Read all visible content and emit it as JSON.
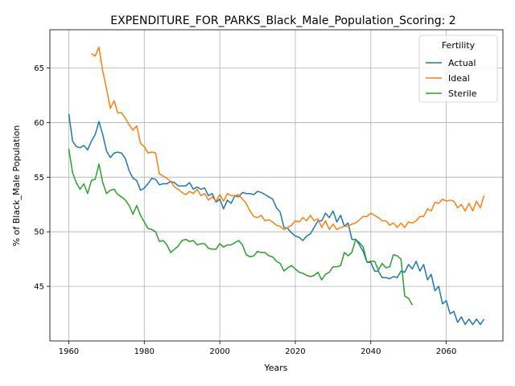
{
  "chart_data": {
    "type": "line",
    "title": "EXPENDITURE_FOR_PARKS_Black_Male_Population_Scoring: 2",
    "xlabel": "Years",
    "ylabel": "% of Black_Male Population",
    "xlim": [
      1955,
      2075
    ],
    "ylim": [
      40,
      68.5
    ],
    "xticks": [
      1960,
      1980,
      2000,
      2020,
      2040,
      2060
    ],
    "yticks": [
      45,
      50,
      55,
      60,
      65
    ],
    "grid": true,
    "legend": {
      "title": "Fertility",
      "placement": "top-right"
    },
    "series": [
      {
        "name": "Actual",
        "color": "#1f77b4",
        "x": [
          1960,
          1961,
          1962,
          1963,
          1964,
          1965,
          1966,
          1967,
          1968,
          1969,
          1970,
          1971,
          1972,
          1973,
          1974,
          1975,
          1976,
          1977,
          1978,
          1979,
          1980,
          1981,
          1982,
          1983,
          1984,
          1985,
          1986,
          1987,
          1988,
          1989,
          1990,
          1991,
          1992,
          1993,
          1994,
          1995,
          1996,
          1997,
          1998,
          1999,
          2000,
          2001,
          2002,
          2003,
          2004,
          2005,
          2006,
          2007,
          2008,
          2009,
          2010,
          2011,
          2012,
          2013,
          2014,
          2015,
          2016,
          2017,
          2018,
          2019,
          2020,
          2021,
          2022,
          2023,
          2024,
          2025,
          2026,
          2027,
          2028,
          2029,
          2030,
          2031,
          2032,
          2033,
          2034,
          2035,
          2036,
          2037,
          2038,
          2039,
          2040,
          2041,
          2042,
          2043,
          2044,
          2045,
          2046,
          2047,
          2048,
          2049,
          2050,
          2051,
          2052,
          2053,
          2054,
          2055,
          2056,
          2057,
          2058,
          2059,
          2060,
          2061,
          2062,
          2063,
          2064,
          2065,
          2066,
          2067,
          2068,
          2069,
          2070
        ],
        "values": [
          60.8,
          58.3,
          57.8,
          57.7,
          57.9,
          57.5,
          58.3,
          58.9,
          60.1,
          58.9,
          57.4,
          56.8,
          57.2,
          57.3,
          57.2,
          56.7,
          55.6,
          54.9,
          54.7,
          53.8,
          54.0,
          54.4,
          54.9,
          54.8,
          54.3,
          54.4,
          54.4,
          54.6,
          54.5,
          54.2,
          54.2,
          54.2,
          54.5,
          53.9,
          54.1,
          53.9,
          54.0,
          53.3,
          53.5,
          52.7,
          53.0,
          52.1,
          52.9,
          52.6,
          53.3,
          53.2,
          53.6,
          53.5,
          53.5,
          53.4,
          53.7,
          53.6,
          53.4,
          53.2,
          53.0,
          52.2,
          51.8,
          50.4,
          50.3,
          49.9,
          49.6,
          49.5,
          49.2,
          49.6,
          49.8,
          50.4,
          51.0,
          51.0,
          51.7,
          51.3,
          51.9,
          50.9,
          51.5,
          50.5,
          50.8,
          49.3,
          49.3,
          48.8,
          48.2,
          47.2,
          47.2,
          46.4,
          46.4,
          45.8,
          45.8,
          45.7,
          45.9,
          45.8,
          46.4,
          46.3,
          47.0,
          46.6,
          47.3,
          46.4,
          47.0,
          45.6,
          46.1,
          44.6,
          45.0,
          43.4,
          43.7,
          42.5,
          42.7,
          41.7,
          42.2,
          41.5,
          42.0,
          41.5,
          42.0,
          41.5,
          42.0
        ]
      },
      {
        "name": "Ideal",
        "color": "#ff7f0e",
        "x": [
          1966,
          1967,
          1968,
          1969,
          1970,
          1971,
          1972,
          1973,
          1974,
          1975,
          1976,
          1977,
          1978,
          1979,
          1980,
          1981,
          1982,
          1983,
          1984,
          1985,
          1986,
          1987,
          1988,
          1989,
          1990,
          1991,
          1992,
          1993,
          1994,
          1995,
          1996,
          1997,
          1998,
          1999,
          2000,
          2001,
          2002,
          2003,
          2004,
          2005,
          2006,
          2007,
          2008,
          2009,
          2010,
          2011,
          2012,
          2013,
          2014,
          2015,
          2016,
          2017,
          2018,
          2019,
          2020,
          2021,
          2022,
          2023,
          2024,
          2025,
          2026,
          2027,
          2028,
          2029,
          2030,
          2031,
          2032,
          2033,
          2034,
          2035,
          2036,
          2037,
          2038,
          2039,
          2040,
          2041,
          2042,
          2043,
          2044,
          2045,
          2046,
          2047,
          2048,
          2049,
          2050,
          2051,
          2052,
          2053,
          2054,
          2055,
          2056,
          2057,
          2058,
          2059,
          2060,
          2061,
          2062,
          2063,
          2064,
          2065,
          2066,
          2067,
          2068,
          2069,
          2070
        ],
        "values": [
          66.3,
          66.1,
          66.9,
          64.7,
          63.1,
          61.3,
          62.0,
          60.9,
          60.9,
          60.4,
          59.8,
          59.3,
          59.7,
          58.1,
          57.8,
          57.2,
          57.3,
          57.2,
          55.3,
          55.1,
          54.9,
          54.6,
          54.1,
          53.9,
          53.6,
          53.4,
          53.7,
          53.5,
          53.9,
          53.3,
          53.5,
          52.9,
          53.2,
          52.8,
          53.4,
          52.8,
          53.5,
          53.3,
          53.3,
          53.4,
          53.0,
          52.6,
          51.9,
          51.4,
          51.3,
          51.5,
          51.0,
          51.1,
          50.9,
          50.6,
          50.5,
          50.2,
          50.4,
          50.6,
          51.0,
          50.9,
          51.3,
          51.0,
          51.5,
          51.0,
          51.2,
          50.4,
          51.0,
          50.2,
          50.7,
          50.2,
          50.4,
          50.5,
          50.5,
          50.7,
          50.8,
          51.1,
          51.4,
          51.4,
          51.7,
          51.5,
          51.3,
          51.0,
          51.0,
          50.6,
          50.8,
          50.4,
          50.8,
          50.4,
          50.9,
          50.8,
          51.0,
          51.4,
          51.4,
          52.1,
          51.9,
          52.7,
          52.6,
          53.0,
          52.8,
          52.9,
          52.8,
          52.2,
          52.5,
          51.9,
          52.6,
          51.9,
          52.8,
          52.2,
          53.3
        ]
      },
      {
        "name": "Sterile",
        "color": "#2ca02c",
        "x": [
          1960,
          1961,
          1962,
          1963,
          1964,
          1965,
          1966,
          1967,
          1968,
          1969,
          1970,
          1971,
          1972,
          1973,
          1974,
          1975,
          1976,
          1977,
          1978,
          1979,
          1980,
          1981,
          1982,
          1983,
          1984,
          1985,
          1986,
          1987,
          1988,
          1989,
          1990,
          1991,
          1992,
          1993,
          1994,
          1995,
          1996,
          1997,
          1998,
          1999,
          2000,
          2001,
          2002,
          2003,
          2004,
          2005,
          2006,
          2007,
          2008,
          2009,
          2010,
          2011,
          2012,
          2013,
          2014,
          2015,
          2016,
          2017,
          2018,
          2019,
          2020,
          2021,
          2022,
          2023,
          2024,
          2025,
          2026,
          2027,
          2028,
          2029,
          2030,
          2031,
          2032,
          2033,
          2034,
          2035,
          2036,
          2037,
          2038,
          2039,
          2040,
          2041,
          2042,
          2043,
          2044,
          2045,
          2046,
          2047,
          2048,
          2049,
          2050,
          2051
        ],
        "values": [
          57.6,
          55.4,
          54.5,
          53.9,
          54.4,
          53.5,
          54.7,
          54.8,
          56.2,
          54.5,
          53.5,
          53.8,
          53.9,
          53.4,
          53.2,
          52.9,
          52.4,
          51.6,
          52.4,
          51.5,
          50.9,
          50.3,
          50.2,
          50.0,
          49.1,
          49.2,
          48.8,
          48.1,
          48.4,
          48.7,
          49.2,
          49.3,
          49.1,
          49.2,
          48.8,
          48.9,
          48.9,
          48.5,
          48.4,
          48.4,
          48.9,
          48.6,
          48.8,
          48.8,
          49.0,
          49.2,
          48.8,
          47.9,
          47.7,
          47.8,
          48.2,
          48.1,
          48.1,
          47.8,
          47.7,
          47.3,
          47.1,
          46.4,
          46.7,
          46.9,
          46.6,
          46.3,
          46.2,
          46.0,
          45.9,
          46.0,
          46.3,
          45.6,
          46.1,
          46.3,
          46.8,
          46.8,
          46.9,
          48.1,
          47.8,
          48.1,
          49.3,
          49.0,
          48.6,
          47.2,
          47.3,
          47.3,
          46.5,
          47.1,
          46.7,
          46.8,
          47.9,
          47.8,
          47.5,
          44.1,
          43.9,
          43.3
        ]
      }
    ]
  }
}
